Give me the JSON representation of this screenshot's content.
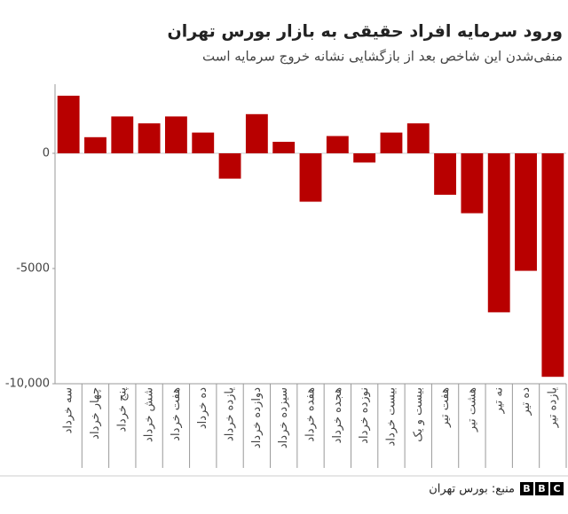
{
  "chart_data": {
    "type": "bar",
    "title": "ورود سرمایه افراد حقیقی به بازار بورس تهران",
    "subtitle": "منفی‌شدن این شاخص بعد از بازگشایی نشانه خروج سرمایه است",
    "categories": [
      "سه خرداد",
      "چهار خرداد",
      "پنج خرداد",
      "شش خرداد",
      "هفت خرداد",
      "ده خرداد",
      "یازده خرداد",
      "دوازده خرداد",
      "سیزده خرداد",
      "هفده خرداد",
      "هجده خرداد",
      "نوزده خرداد",
      "بیست خرداد",
      "بیست و یک",
      "هفت تیر",
      "هشت تیر",
      "نه تیر",
      "ده تیر",
      "یازده تیر"
    ],
    "values": [
      2500,
      700,
      1600,
      1300,
      1600,
      900,
      -1100,
      1700,
      500,
      -2100,
      750,
      -400,
      900,
      1300,
      -1800,
      -2600,
      -6900,
      -5100,
      -9700
    ],
    "color": "#b80000",
    "ylim": [
      -10000,
      3000
    ],
    "yticks": [
      0,
      -5000,
      {
        "value": -10000,
        "label": "-10,000"
      }
    ],
    "source": "منبع: بورس تهران",
    "logo": [
      "B",
      "B",
      "C"
    ]
  }
}
